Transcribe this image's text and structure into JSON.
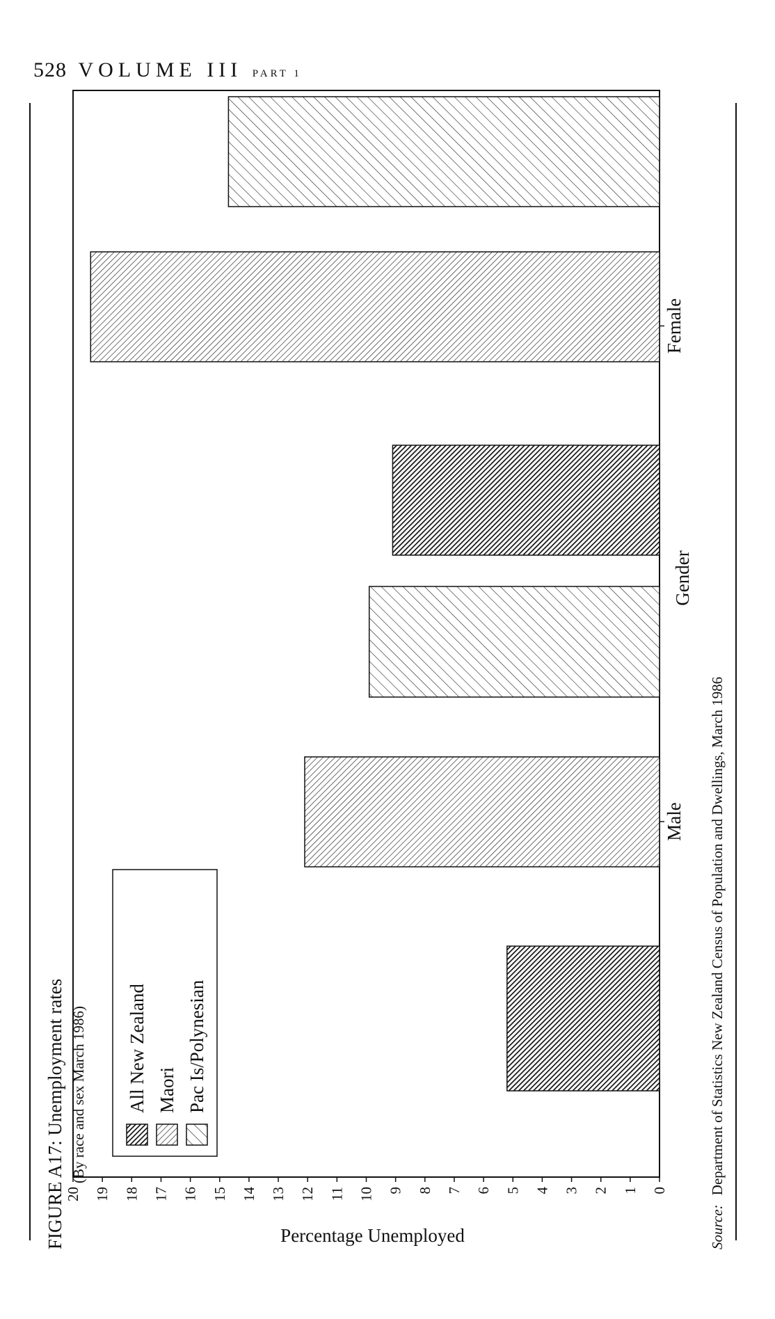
{
  "header": {
    "page_number": "528",
    "volume": "VOLUME III",
    "part": "PART 1"
  },
  "figure": {
    "caption": "FIGURE A17: Unemployment rates",
    "subcaption": "(By race and sex March 1986)",
    "source_label": "Source:",
    "source_text": "Department of Statistics New Zealand Census of Population and Dwellings, March 1986"
  },
  "chart_data": {
    "type": "bar",
    "title": "FIGURE A17: Unemployment rates",
    "subtitle": "(By race and sex March 1986)",
    "xlabel": "Gender",
    "ylabel": "Percentage Unemployed",
    "categories": [
      "Male",
      "Female"
    ],
    "series": [
      {
        "name": "All New Zealand",
        "values": [
          5.2,
          9.1
        ],
        "pattern": "dense-diagonal",
        "color": "#1a1a1a"
      },
      {
        "name": "Maori",
        "values": [
          12.1,
          19.4
        ],
        "pattern": "medium-diagonal",
        "color": "#555555"
      },
      {
        "name": "Pac Is/Polynesian",
        "values": [
          9.9,
          14.7
        ],
        "pattern": "sparse-diagonal",
        "color": "#222222"
      }
    ],
    "ylim": [
      0,
      20
    ],
    "yticks": [
      "0",
      "1",
      "2",
      "3",
      "4",
      "5",
      "6",
      "7",
      "8",
      "9",
      "10",
      "11",
      "12",
      "13",
      "14",
      "15",
      "16",
      "17",
      "18",
      "19",
      "20"
    ],
    "grid": false,
    "legend_position": "top-left",
    "orientation": "rotated-page"
  }
}
